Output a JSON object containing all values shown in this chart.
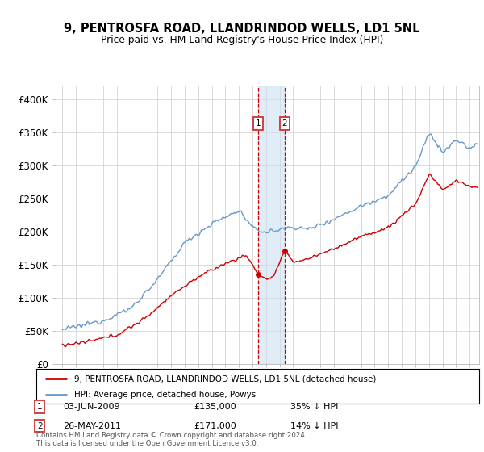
{
  "title": "9, PENTROSFA ROAD, LLANDRINDOD WELLS, LD1 5NL",
  "subtitle": "Price paid vs. HM Land Registry's House Price Index (HPI)",
  "ylabel_ticks": [
    "£0",
    "£50K",
    "£100K",
    "£150K",
    "£200K",
    "£250K",
    "£300K",
    "£350K",
    "£400K"
  ],
  "ytick_vals": [
    0,
    50000,
    100000,
    150000,
    200000,
    250000,
    300000,
    350000,
    400000
  ],
  "ylim": [
    0,
    420000
  ],
  "transaction1": {
    "date": "03-JUN-2009",
    "price": 135000,
    "pct": "35% ↓ HPI",
    "label": "1",
    "x_year": 2009.42
  },
  "transaction2": {
    "date": "26-MAY-2011",
    "price": 171000,
    "pct": "14% ↓ HPI",
    "label": "2",
    "x_year": 2011.38
  },
  "legend_property": "9, PENTROSFA ROAD, LLANDRINDOD WELLS, LD1 5NL (detached house)",
  "legend_hpi": "HPI: Average price, detached house, Powys",
  "footnote": "Contains HM Land Registry data © Crown copyright and database right 2024.\nThis data is licensed under the Open Government Licence v3.0.",
  "property_color": "#cc0000",
  "hpi_color": "#6699cc",
  "shade_color": "#cce0f0",
  "vline_color": "#cc0000",
  "grid_color": "#cccccc",
  "bg_color": "#ffffff",
  "box_color": "#cc3333",
  "xlim_left": 1994.5,
  "xlim_right": 2025.7
}
